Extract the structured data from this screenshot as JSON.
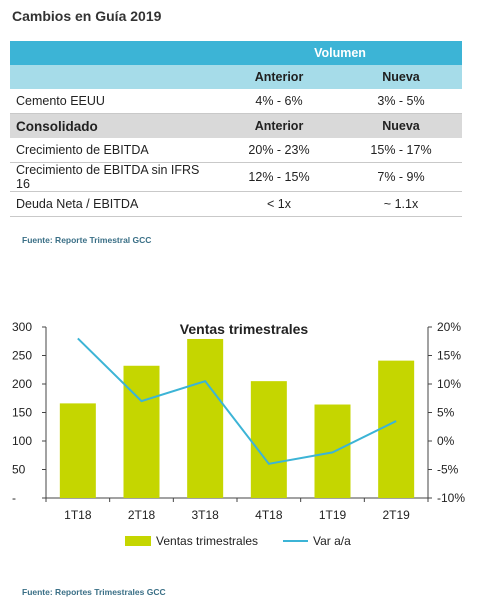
{
  "page": {
    "title": "Cambios en Guía 2019"
  },
  "table": {
    "group_header": "Volumen",
    "sub_headers": [
      "Anterior",
      "Nueva"
    ],
    "rows": [
      {
        "label": "Cemento EEUU",
        "anterior": "4% - 6%",
        "nueva": "3% - 5%"
      }
    ],
    "section": {
      "label": "Consolidado",
      "anterior": "Anterior",
      "nueva": "Nueva"
    },
    "section_rows": [
      {
        "label": "Crecimiento de EBITDA",
        "anterior": "20% - 23%",
        "nueva": "15% - 17%"
      },
      {
        "label": "Crecimiento de EBITDA sin IFRS 16",
        "anterior": "12% - 15%",
        "nueva": "7% - 9%"
      },
      {
        "label": "Deuda Neta / EBITDA",
        "anterior": "< 1x",
        "nueva": "~ 1.1x"
      }
    ]
  },
  "source_table": "Fuente: Reporte Trimestral GCC",
  "source_chart": "Fuente: Reportes Trimestrales GCC",
  "chart_data": {
    "type": "bar",
    "title": "Ventas trimestrales",
    "categories": [
      "1T18",
      "2T18",
      "3T18",
      "4T18",
      "1T19",
      "2T19"
    ],
    "series": [
      {
        "name": "Ventas trimestrales",
        "type": "bar",
        "axis": "left",
        "values": [
          166,
          232,
          279,
          205,
          164,
          241
        ],
        "color": "#c5d600"
      },
      {
        "name": "Var a/a",
        "type": "line",
        "axis": "right",
        "values": [
          18,
          7,
          10.5,
          -4,
          -2,
          3.5
        ],
        "color": "#3cb4d6"
      }
    ],
    "yleft": {
      "min": 0,
      "max": 300,
      "ticks": [
        0,
        50,
        100,
        150,
        200,
        250,
        300
      ],
      "tick_labels": [
        "-",
        "50",
        "100",
        "150",
        "200",
        "250",
        "300"
      ]
    },
    "yright": {
      "min": -10,
      "max": 20,
      "ticks": [
        -10,
        -5,
        0,
        5,
        10,
        15,
        20
      ],
      "tick_labels": [
        "-10%",
        "-5%",
        "0%",
        "5%",
        "10%",
        "15%",
        "20%"
      ]
    },
    "grid": false,
    "legend": "bottom"
  }
}
